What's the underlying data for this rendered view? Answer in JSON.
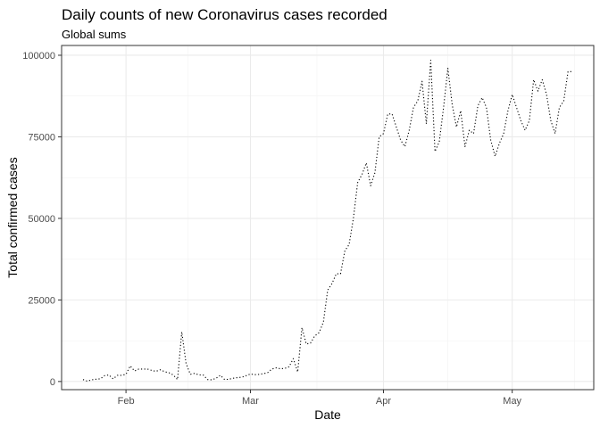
{
  "chart_data": {
    "type": "line",
    "title": "Daily counts of new Coronavirus cases recorded",
    "subtitle": "Global sums",
    "xlabel": "Date",
    "ylabel": "Total confirmed cases",
    "ylim": [
      -2500,
      103000
    ],
    "xlim": [
      "2020-01-17",
      "2020-05-20"
    ],
    "x_ticks": [
      {
        "date": "2020-02-01",
        "label": "Feb"
      },
      {
        "date": "2020-03-01",
        "label": "Mar"
      },
      {
        "date": "2020-04-01",
        "label": "Apr"
      },
      {
        "date": "2020-05-01",
        "label": "May"
      }
    ],
    "y_ticks": [
      {
        "value": 0,
        "label": "0"
      },
      {
        "value": 25000,
        "label": "25000"
      },
      {
        "value": 50000,
        "label": "50000"
      },
      {
        "value": 75000,
        "label": "75000"
      },
      {
        "value": 100000,
        "label": "100000"
      }
    ],
    "grid": true,
    "line_style": "dotted",
    "line_color": "#000000",
    "series": [
      {
        "x": [
          "2020-01-22",
          "2020-01-23",
          "2020-01-24",
          "2020-01-25",
          "2020-01-26",
          "2020-01-27",
          "2020-01-28",
          "2020-01-29",
          "2020-01-30",
          "2020-01-31",
          "2020-02-01",
          "2020-02-02",
          "2020-02-03",
          "2020-02-04",
          "2020-02-05",
          "2020-02-06",
          "2020-02-07",
          "2020-02-08",
          "2020-02-09",
          "2020-02-10",
          "2020-02-11",
          "2020-02-12",
          "2020-02-13",
          "2020-02-14",
          "2020-02-15",
          "2020-02-16",
          "2020-02-17",
          "2020-02-18",
          "2020-02-19",
          "2020-02-20",
          "2020-02-21",
          "2020-02-22",
          "2020-02-23",
          "2020-02-24",
          "2020-02-25",
          "2020-02-26",
          "2020-02-27",
          "2020-02-28",
          "2020-02-29",
          "2020-03-01",
          "2020-03-02",
          "2020-03-03",
          "2020-03-04",
          "2020-03-05",
          "2020-03-06",
          "2020-03-07",
          "2020-03-08",
          "2020-03-09",
          "2020-03-10",
          "2020-03-11",
          "2020-03-12",
          "2020-03-13",
          "2020-03-14",
          "2020-03-15",
          "2020-03-16",
          "2020-03-17",
          "2020-03-18",
          "2020-03-19",
          "2020-03-20",
          "2020-03-21",
          "2020-03-22",
          "2020-03-23",
          "2020-03-24",
          "2020-03-25",
          "2020-03-26",
          "2020-03-27",
          "2020-03-28",
          "2020-03-29",
          "2020-03-30",
          "2020-03-31",
          "2020-04-01",
          "2020-04-02",
          "2020-04-03",
          "2020-04-04",
          "2020-04-05",
          "2020-04-06",
          "2020-04-07",
          "2020-04-08",
          "2020-04-09",
          "2020-04-10",
          "2020-04-11",
          "2020-04-12",
          "2020-04-13",
          "2020-04-14",
          "2020-04-15",
          "2020-04-16",
          "2020-04-17",
          "2020-04-18",
          "2020-04-19",
          "2020-04-20",
          "2020-04-21",
          "2020-04-22",
          "2020-04-23",
          "2020-04-24",
          "2020-04-25",
          "2020-04-26",
          "2020-04-27",
          "2020-04-28",
          "2020-04-29",
          "2020-04-30",
          "2020-05-01",
          "2020-05-02",
          "2020-05-03",
          "2020-05-04",
          "2020-05-05",
          "2020-05-06",
          "2020-05-07",
          "2020-05-08",
          "2020-05-09",
          "2020-05-10",
          "2020-05-11",
          "2020-05-12",
          "2020-05-13",
          "2020-05-14",
          "2020-05-15"
        ],
        "values": [
          600,
          100,
          500,
          700,
          800,
          1800,
          2000,
          800,
          1900,
          1900,
          2200,
          4800,
          3200,
          3800,
          3800,
          3800,
          3400,
          3100,
          3600,
          3000,
          2700,
          2000,
          600,
          15200,
          5500,
          2200,
          2500,
          2000,
          2000,
          600,
          500,
          1000,
          1900,
          600,
          700,
          1000,
          1200,
          1300,
          1800,
          2300,
          2100,
          2200,
          2400,
          2700,
          3800,
          4200,
          3900,
          4000,
          4500,
          7000,
          2900,
          16500,
          11500,
          11800,
          14000,
          15000,
          18200,
          28000,
          30000,
          33000,
          33000,
          40000,
          42000,
          50000,
          61000,
          63500,
          67000,
          60000,
          64000,
          75000,
          76000,
          82000,
          82000,
          78000,
          74000,
          72000,
          77000,
          84000,
          86000,
          92000,
          79000,
          98500,
          70500,
          73500,
          84000,
          96000,
          85000,
          78000,
          83000,
          72000,
          77000,
          76000,
          84500,
          87000,
          84000,
          74000,
          69000,
          73000,
          76000,
          83000,
          88000,
          84000,
          80000,
          77000,
          80000,
          92500,
          89000,
          92500,
          88000,
          80000,
          76000,
          84000,
          86000,
          95000,
          95000
        ]
      }
    ]
  }
}
